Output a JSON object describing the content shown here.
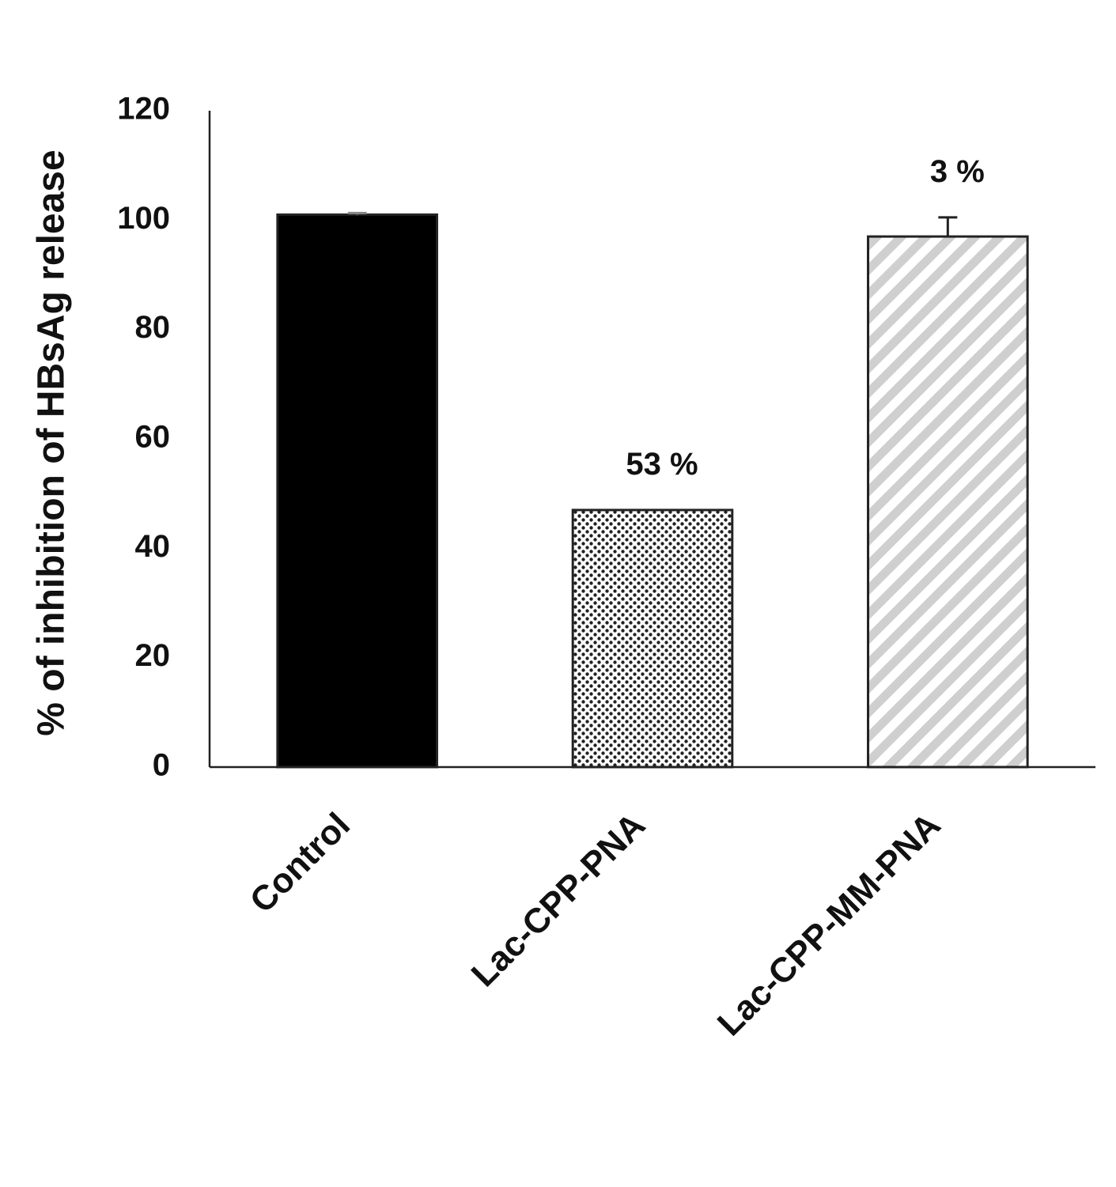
{
  "chart_data": {
    "type": "bar",
    "ylabel": "% of inhibition of HBsAg release",
    "categories": [
      "Control",
      "Lac-CPP-PNA",
      "Lac-CPP-MM-PNA"
    ],
    "values": [
      101,
      47,
      97
    ],
    "errors": [
      0.3,
      0,
      3.5
    ],
    "value_annotations": [
      null,
      "53 %",
      "3 %"
    ],
    "colors": [
      "#000000",
      "#ffffff",
      "#d0d0d0"
    ],
    "patterns": [
      "solid",
      "dots",
      "hatch"
    ],
    "ylim": [
      0,
      120
    ],
    "yticks": [
      0,
      20,
      40,
      60,
      80,
      100,
      120
    ],
    "grid": false
  }
}
